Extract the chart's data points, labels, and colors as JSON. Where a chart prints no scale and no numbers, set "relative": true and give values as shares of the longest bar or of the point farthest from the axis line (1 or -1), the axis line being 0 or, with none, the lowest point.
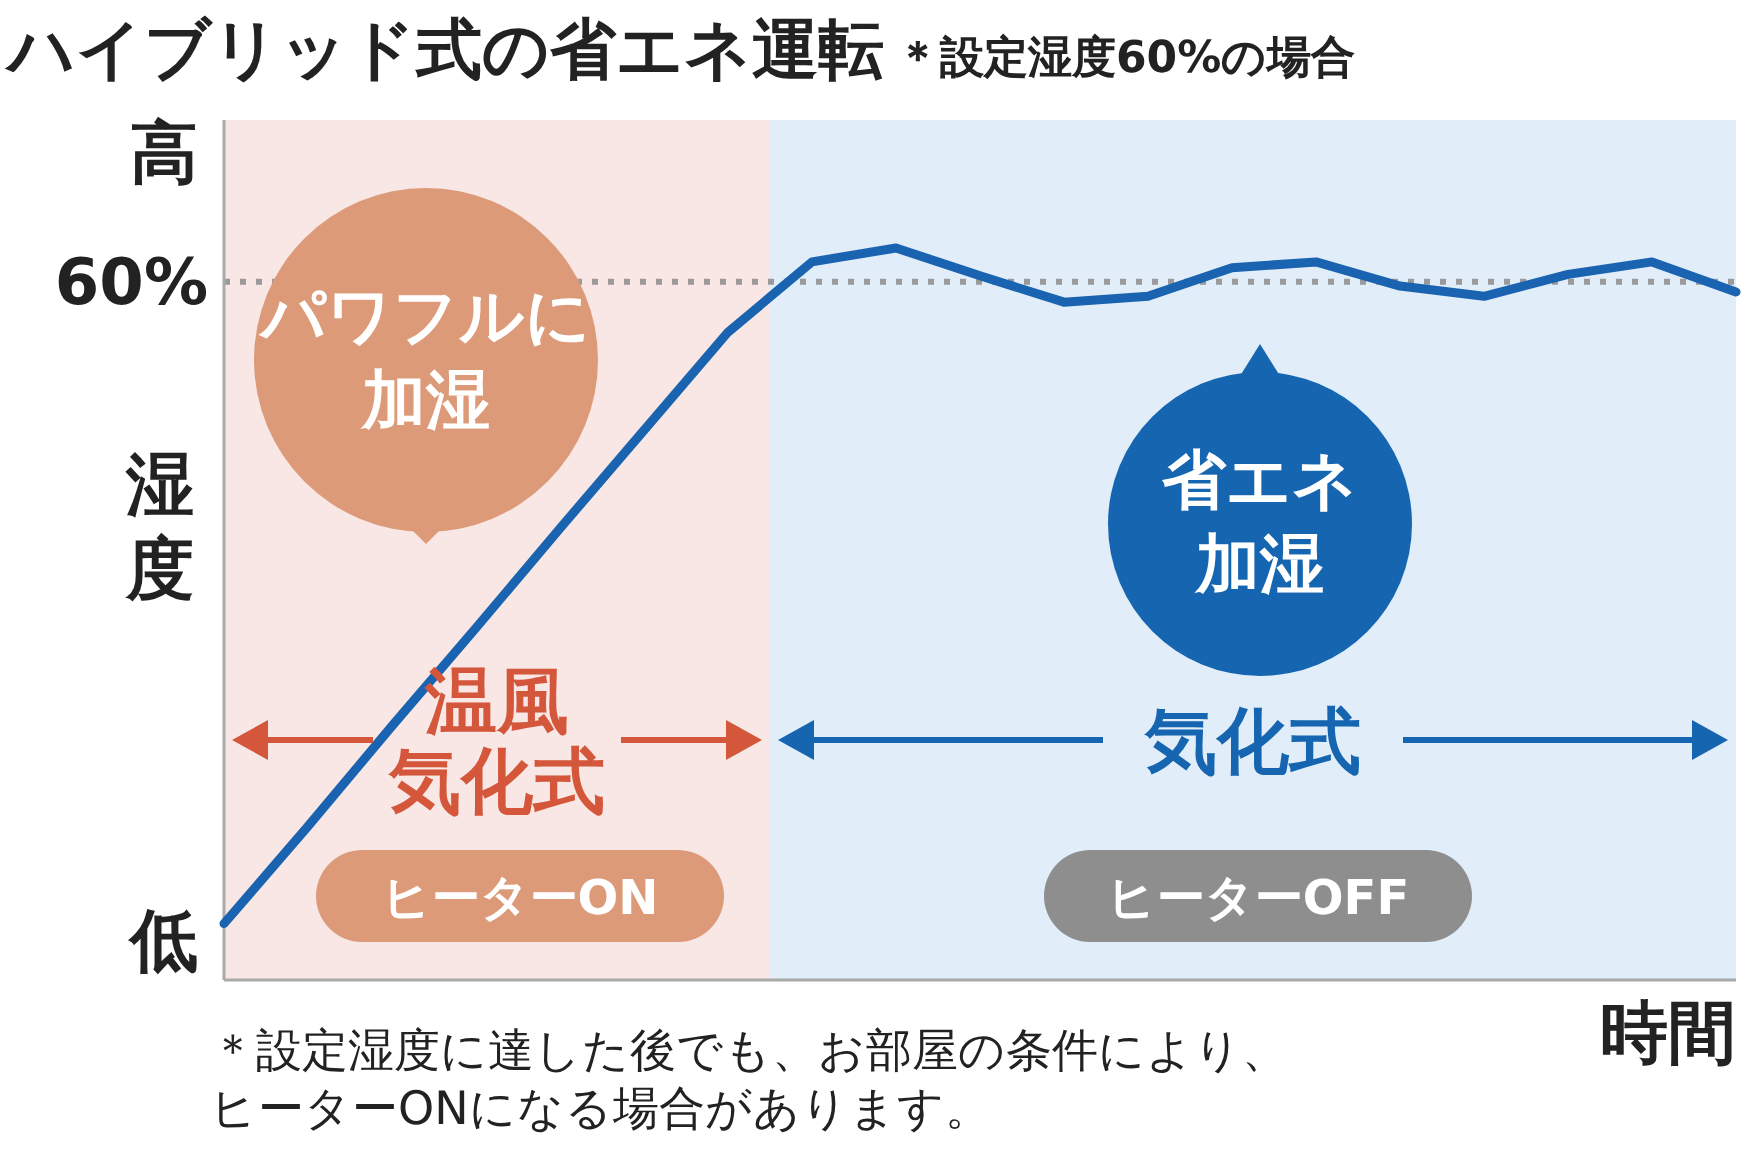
{
  "chart_data": {
    "type": "line",
    "title": "ハイブリッド式の省エネ運転",
    "subtitle": "＊設定湿度60%の場合",
    "ylabel": "湿度",
    "xlabel": "時間",
    "relative": true,
    "categories": [
      null,
      null,
      null,
      null,
      null,
      null,
      null,
      null,
      null,
      null,
      null,
      null,
      null,
      null,
      null,
      null,
      null,
      null,
      null
    ],
    "series": [
      {
        "color": "#1a63b0",
        "values": [
          0.077,
          0.21,
          0.347,
          0.481,
          0.617,
          0.751,
          0.885,
          0.981,
          1,
          0.962,
          0.926,
          0.934,
          0.973,
          0.981,
          0.948,
          0.934,
          0.964,
          0.981,
          0.94
        ]
      }
    ],
    "ref_lines": [
      {
        "axis": "y",
        "value": 0.954,
        "color": "#9a9a9a",
        "line_style": "dotted"
      }
    ],
    "annotations": [
      "高",
      "60%",
      "低",
      "パワフルに加湿",
      "省エネ加湿",
      "温風気化式",
      "気化式",
      "ヒーターON",
      "ヒーターOFF",
      "＊設定湿度に達した後でも、お部屋の条件により、ヒーターONになる場合があります。"
    ],
    "line_style": "solid",
    "marker": "none"
  }
}
